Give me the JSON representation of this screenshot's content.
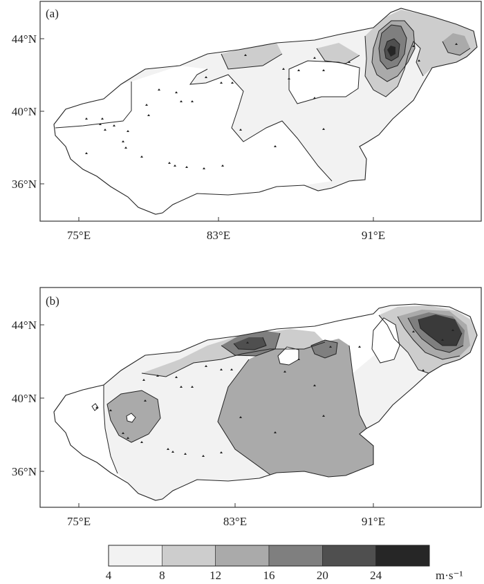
{
  "panels": [
    {
      "label": "(a)",
      "lat_ticks": [
        "44°N",
        "40°N",
        "36°N"
      ],
      "lon_ticks": [
        "75°E",
        "83°E",
        "91°E"
      ]
    },
    {
      "label": "(b)",
      "lat_ticks": [
        "44°N",
        "40°N",
        "36°N"
      ],
      "lon_ticks": [
        "75°E",
        "83°E",
        "91°E"
      ]
    }
  ],
  "legend": {
    "ticks": [
      "4",
      "8",
      "12",
      "16",
      "20",
      "24"
    ],
    "unit": "m·s⁻¹",
    "colors": [
      "#f2f2f2",
      "#cdcdcd",
      "#aaaaaa",
      "#7f7f7f",
      "#4f4f4f",
      "#262626"
    ]
  }
}
